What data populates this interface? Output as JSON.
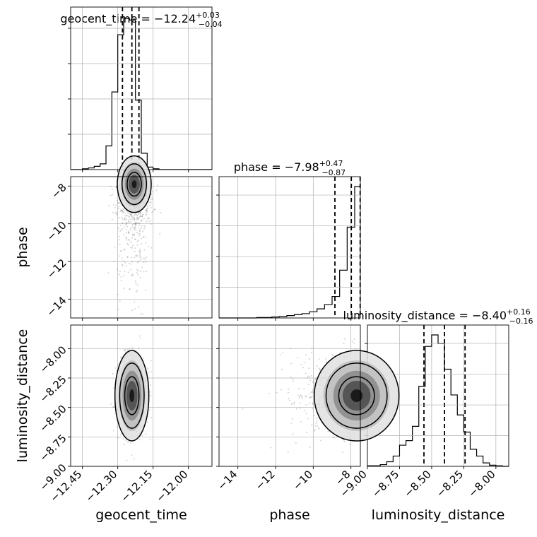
{
  "chart_data": [
    {
      "type": "histogram",
      "panel": "geocent_time-marginal",
      "title": {
        "param": "geocent_time",
        "value": "−12.24",
        "plus": "+0.03",
        "minus": "−0.04"
      },
      "xlim": [
        -12.5,
        -11.9
      ],
      "bin_edges": [
        -12.5,
        -12.475,
        -12.45,
        -12.425,
        -12.4,
        -12.375,
        -12.35,
        -12.325,
        -12.3,
        -12.275,
        -12.25,
        -12.225,
        -12.2,
        -12.175,
        -12.15,
        -12.125,
        -12.1,
        -12.075,
        -12.05,
        -12.025,
        -12.0,
        -11.975,
        -11.95,
        -11.925,
        -11.9
      ],
      "counts": [
        0,
        0,
        1,
        2,
        4,
        7,
        29,
        95,
        165,
        185,
        183,
        85,
        20,
        3,
        1,
        0,
        0,
        0,
        0,
        0,
        0,
        0,
        0,
        0
      ],
      "quantiles": [
        -12.28,
        -12.24,
        -12.21
      ]
    },
    {
      "type": "histogram",
      "panel": "phase-marginal",
      "title": {
        "param": "phase",
        "value": "−7.98",
        "plus": "+0.47",
        "minus": "−0.87"
      },
      "xlim": [
        -15.0,
        -7.5
      ],
      "bin_edges": [
        -15.0,
        -14.6,
        -14.2,
        -13.8,
        -13.4,
        -13.0,
        -12.6,
        -12.2,
        -11.8,
        -11.4,
        -11.0,
        -10.6,
        -10.2,
        -9.8,
        -9.4,
        -9.0,
        -8.6,
        -8.2,
        -7.8,
        -7.5
      ],
      "counts": [
        0,
        0,
        0,
        0,
        0,
        1,
        1,
        2,
        3,
        5,
        7,
        9,
        13,
        19,
        28,
        45,
        100,
        190,
        275
      ],
      "quantiles": [
        -8.85,
        -7.98,
        -7.51
      ]
    },
    {
      "type": "histogram",
      "panel": "luminosity_distance-marginal",
      "title": {
        "param": "luminosity_distance",
        "value": "−8.40",
        "plus": "+0.16",
        "minus": "−0.16"
      },
      "xlim": [
        -9.0,
        -7.9
      ],
      "bin_edges": [
        -9.0,
        -8.9,
        -8.85,
        -8.8,
        -8.75,
        -8.7,
        -8.65,
        -8.6,
        -8.55,
        -8.5,
        -8.45,
        -8.4,
        -8.35,
        -8.3,
        -8.25,
        -8.2,
        -8.15,
        -8.1,
        -8.05,
        -8.0,
        -7.95,
        -7.9
      ],
      "counts": [
        1,
        3,
        8,
        18,
        37,
        45,
        70,
        140,
        210,
        230,
        215,
        170,
        125,
        90,
        60,
        30,
        18,
        6,
        2,
        1,
        0
      ],
      "quantiles": [
        -8.56,
        -8.4,
        -8.24
      ]
    },
    {
      "type": "scatter-contour",
      "panel": "geocent_time-vs-phase",
      "x_param": "geocent_time",
      "y_param": "phase",
      "xlim": [
        -12.5,
        -11.9
      ],
      "ylim": [
        -15.0,
        -7.5
      ],
      "mode": {
        "x": -12.23,
        "y": -7.9
      }
    },
    {
      "type": "scatter-contour",
      "panel": "geocent_time-vs-luminosity_distance",
      "x_param": "geocent_time",
      "y_param": "luminosity_distance",
      "xlim": [
        -12.5,
        -11.9
      ],
      "ylim": [
        -9.0,
        -7.8
      ],
      "mode": {
        "x": -12.24,
        "y": -8.4
      }
    },
    {
      "type": "scatter-contour",
      "panel": "phase-vs-luminosity_distance",
      "x_param": "phase",
      "y_param": "luminosity_distance",
      "xlim": [
        -15.0,
        -7.5
      ],
      "ylim": [
        -9.0,
        -7.8
      ],
      "mode": {
        "x": -7.7,
        "y": -8.4
      }
    }
  ],
  "axes": {
    "x_labels": [
      "geocent_time",
      "phase",
      "luminosity_distance"
    ],
    "y_labels": [
      "phase",
      "luminosity_distance"
    ],
    "geocent_time_ticks": [
      "−12.45",
      "−12.30",
      "−12.15",
      "−12.00"
    ],
    "geocent_time_tick_values": [
      -12.45,
      -12.3,
      -12.15,
      -12.0
    ],
    "phase_ticks": [
      "−14",
      "−12",
      "−10",
      "−8"
    ],
    "phase_tick_values": [
      -14,
      -12,
      -10,
      -8
    ],
    "luminosity_distance_ticks": [
      "−9.00",
      "−8.75",
      "−8.50",
      "−8.25",
      "−8.00"
    ],
    "luminosity_distance_tick_values": [
      -9.0,
      -8.75,
      -8.5,
      -8.25,
      -8.0
    ]
  },
  "colors": {
    "line": "#000000",
    "grid": "#b0b0b0",
    "scatter": "#555555"
  }
}
